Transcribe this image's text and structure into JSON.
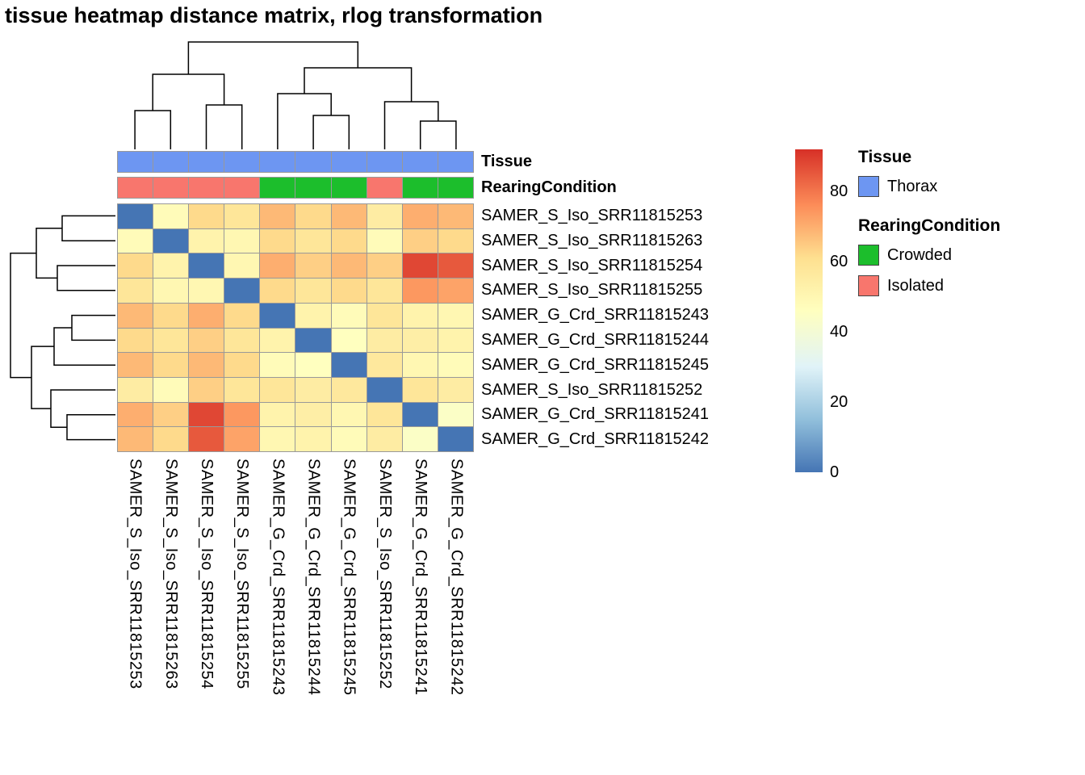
{
  "title": "tissue heatmap distance matrix, rlog transformation",
  "annotation_tracks": {
    "tissue_label": "Tissue",
    "rearing_label": "RearingCondition"
  },
  "legend": {
    "tissue": {
      "title": "Tissue",
      "items": [
        {
          "label": "Thorax",
          "color": "#6D96F2"
        }
      ]
    },
    "rearing": {
      "title": "RearingCondition",
      "items": [
        {
          "label": "Crowded",
          "color": "#1CBE2C"
        },
        {
          "label": "Isolated",
          "color": "#F8766D"
        }
      ]
    }
  },
  "colorbar": {
    "ticks": [
      80,
      60,
      40,
      20,
      0
    ]
  },
  "chart_data": {
    "type": "heatmap",
    "title": "tissue heatmap distance matrix, rlog transformation",
    "rows": [
      "SAMER_S_Iso_SRR11815253",
      "SAMER_S_Iso_SRR11815263",
      "SAMER_S_Iso_SRR11815254",
      "SAMER_S_Iso_SRR11815255",
      "SAMER_G_Crd_SRR11815243",
      "SAMER_G_Crd_SRR11815244",
      "SAMER_G_Crd_SRR11815245",
      "SAMER_S_Iso_SRR11815252",
      "SAMER_G_Crd_SRR11815241",
      "SAMER_G_Crd_SRR11815242"
    ],
    "columns": [
      "SAMER_S_Iso_SRR11815253",
      "SAMER_S_Iso_SRR11815263",
      "SAMER_S_Iso_SRR11815254",
      "SAMER_S_Iso_SRR11815255",
      "SAMER_G_Crd_SRR11815243",
      "SAMER_G_Crd_SRR11815244",
      "SAMER_G_Crd_SRR11815245",
      "SAMER_S_Iso_SRR11815252",
      "SAMER_G_Crd_SRR11815241",
      "SAMER_G_Crd_SRR11815242"
    ],
    "values": [
      [
        0,
        48,
        62,
        58,
        68,
        62,
        68,
        55,
        70,
        68
      ],
      [
        48,
        0,
        52,
        50,
        62,
        58,
        62,
        48,
        64,
        62
      ],
      [
        62,
        52,
        0,
        50,
        70,
        64,
        68,
        64,
        88,
        85
      ],
      [
        58,
        50,
        50,
        0,
        62,
        58,
        62,
        58,
        74,
        72
      ],
      [
        68,
        62,
        70,
        62,
        0,
        52,
        48,
        58,
        52,
        50
      ],
      [
        62,
        58,
        64,
        58,
        52,
        0,
        46,
        55,
        54,
        52
      ],
      [
        68,
        62,
        68,
        62,
        48,
        46,
        0,
        57,
        50,
        48
      ],
      [
        55,
        48,
        64,
        58,
        58,
        55,
        57,
        0,
        58,
        55
      ],
      [
        70,
        64,
        88,
        74,
        52,
        54,
        50,
        58,
        0,
        44
      ],
      [
        68,
        62,
        85,
        72,
        50,
        52,
        48,
        55,
        44,
        0
      ]
    ],
    "vmin": 0,
    "vmax": 92,
    "color_scale": {
      "values": [
        0,
        15,
        30,
        46,
        61,
        76,
        92
      ],
      "colors": [
        "#4575b4",
        "#91bfdb",
        "#e0f3f8",
        "#ffffbf",
        "#fee090",
        "#fc8d59",
        "#d73027"
      ]
    },
    "column_annotations": {
      "Tissue": [
        "Thorax",
        "Thorax",
        "Thorax",
        "Thorax",
        "Thorax",
        "Thorax",
        "Thorax",
        "Thorax",
        "Thorax",
        "Thorax"
      ],
      "RearingCondition": [
        "Isolated",
        "Isolated",
        "Isolated",
        "Isolated",
        "Crowded",
        "Crowded",
        "Crowded",
        "Isolated",
        "Crowded",
        "Crowded"
      ]
    },
    "annotation_colors": {
      "Thorax": "#6D96F2",
      "Crowded": "#1CBE2C",
      "Isolated": "#F8766D"
    },
    "legend_position": "right",
    "dendrograms": {
      "rows": true,
      "columns": true
    },
    "grid": true
  }
}
